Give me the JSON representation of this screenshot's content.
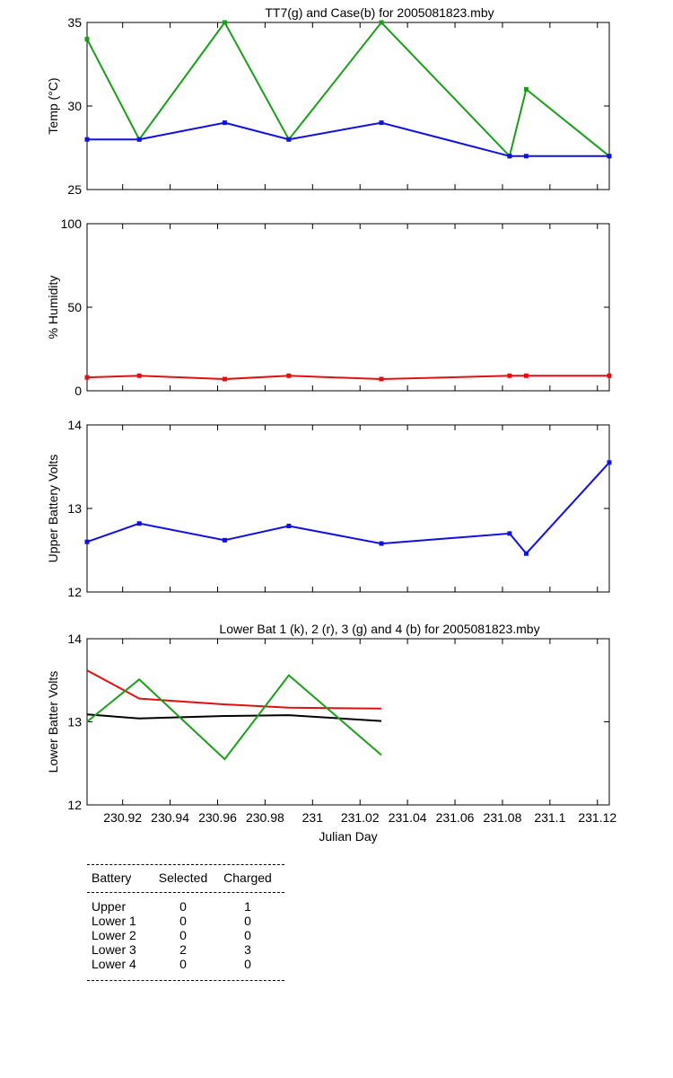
{
  "chart_data": [
    {
      "type": "line",
      "title": "TT7(g) and Case(b) for 2005081823.mby",
      "xlabel": "",
      "ylabel": "Temp  (°C)",
      "xlim": [
        230.905,
        231.125
      ],
      "ylim": [
        25,
        35
      ],
      "yticks": [
        25,
        30,
        35
      ],
      "grid": false,
      "series": [
        {
          "color": "#1a9e1a",
          "x": [
            230.905,
            230.927,
            230.963,
            230.99,
            231.029,
            231.083,
            231.09,
            231.125
          ],
          "values": [
            34,
            28,
            35,
            28,
            35,
            27,
            31,
            27
          ]
        },
        {
          "color": "#1010e0",
          "x": [
            230.905,
            230.927,
            230.963,
            230.99,
            231.029,
            231.083,
            231.09,
            231.125
          ],
          "values": [
            28,
            28,
            29,
            28,
            29,
            27,
            27,
            27
          ]
        }
      ]
    },
    {
      "type": "line",
      "title": "",
      "xlabel": "",
      "ylabel": "% Humidity",
      "xlim": [
        230.905,
        231.125
      ],
      "ylim": [
        0,
        100
      ],
      "yticks": [
        0,
        50,
        100
      ],
      "grid": false,
      "series": [
        {
          "color": "#e01010",
          "x": [
            230.905,
            230.927,
            230.963,
            230.99,
            231.029,
            231.083,
            231.09,
            231.125
          ],
          "values": [
            8,
            9,
            7,
            9,
            7,
            9,
            9,
            9
          ]
        }
      ]
    },
    {
      "type": "line",
      "title": "",
      "xlabel": "",
      "ylabel": "Upper Battery Volts",
      "xlim": [
        230.905,
        231.125
      ],
      "ylim": [
        12,
        14
      ],
      "yticks": [
        12,
        13,
        14
      ],
      "grid": false,
      "series": [
        {
          "color": "#1010e0",
          "x": [
            230.905,
            230.927,
            230.963,
            230.99,
            231.029,
            231.083,
            231.09,
            231.125
          ],
          "values": [
            12.6,
            12.82,
            12.62,
            12.79,
            12.58,
            12.7,
            12.46,
            13.55
          ]
        }
      ]
    },
    {
      "type": "line",
      "title": "Lower Bat 1 (k), 2 (r), 3 (g) and 4 (b) for 2005081823.mby",
      "xlabel": "Julian Day",
      "ylabel": "Lower Batter Volts",
      "xlim": [
        230.905,
        231.125
      ],
      "ylim": [
        12,
        14
      ],
      "yticks": [
        12,
        13,
        14
      ],
      "xticks": [
        230.92,
        230.94,
        230.96,
        230.98,
        231,
        231.02,
        231.04,
        231.06,
        231.08,
        231.1,
        231.12
      ],
      "xtick_labels": [
        "230.92",
        "230.94",
        "230.96",
        "230.98",
        "231",
        "231.02",
        "231.04",
        "231.06",
        "231.08",
        "231.1",
        "231.12"
      ],
      "grid": false,
      "series": [
        {
          "color": "#000000",
          "x": [
            230.905,
            230.927,
            230.963,
            230.99,
            231.029
          ],
          "values": [
            13.09,
            13.04,
            13.07,
            13.08,
            13.01
          ]
        },
        {
          "color": "#e01010",
          "x": [
            230.905,
            230.927,
            230.963,
            230.99,
            231.029
          ],
          "values": [
            13.62,
            13.28,
            13.21,
            13.17,
            13.16
          ]
        },
        {
          "color": "#1a9e1a",
          "x": [
            230.905,
            230.927,
            230.963,
            230.99,
            231.029
          ],
          "values": [
            13.0,
            13.51,
            12.55,
            13.56,
            12.6
          ]
        }
      ]
    }
  ],
  "battery_table": {
    "headers": [
      "Battery",
      "Selected",
      "Charged"
    ],
    "rows": [
      {
        "battery": "Upper",
        "selected": "0",
        "charged": "1"
      },
      {
        "battery": "Lower 1",
        "selected": "0",
        "charged": "0"
      },
      {
        "battery": "Lower 2",
        "selected": "0",
        "charged": "0"
      },
      {
        "battery": "Lower 3",
        "selected": "2",
        "charged": "3"
      },
      {
        "battery": "Lower 4",
        "selected": "0",
        "charged": "0"
      }
    ]
  }
}
